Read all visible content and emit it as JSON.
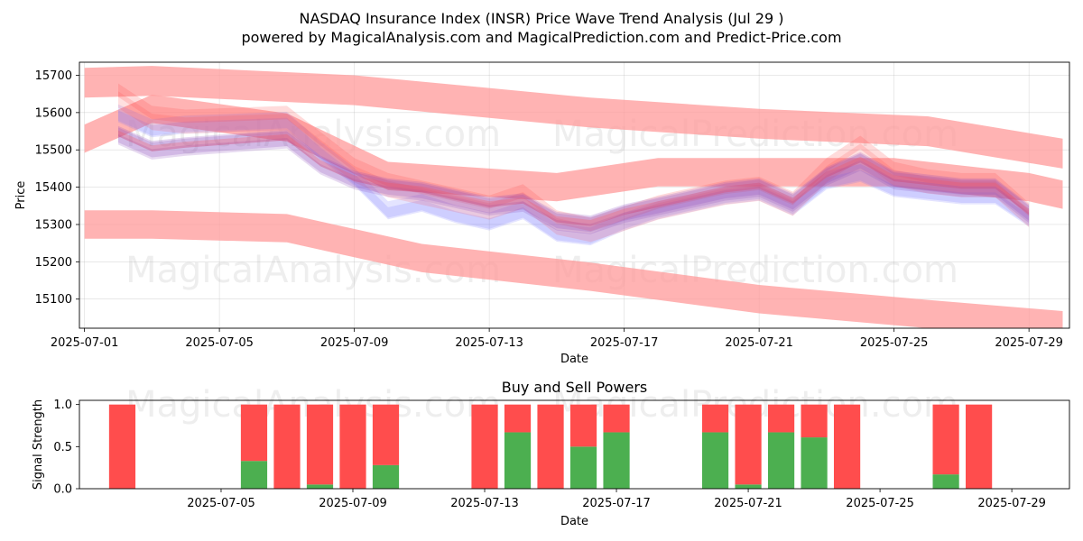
{
  "title": "NASDAQ Insurance Index (INSR) Price Wave Trend Analysis (Jul 29 )",
  "subtitle": "powered by MagicalAnalysis.com and MagicalPrediction.com and Predict-Price.com",
  "watermarks": [
    "MagicalAnalysis.com",
    "MagicalPrediction.com"
  ],
  "colors": {
    "red": "#ff4d4d",
    "green": "#4caf50",
    "blue": "#6b6bff",
    "band": "#ff9999",
    "purple": "#8844bb"
  },
  "chart_data": [
    {
      "type": "line",
      "title": "",
      "xlabel": "Date",
      "ylabel": "Price",
      "xlim": [
        -0.15,
        29.2
      ],
      "ylim": [
        15022,
        15735
      ],
      "x_tick_labels": [
        "2025-07-01",
        "2025-07-05",
        "2025-07-09",
        "2025-07-13",
        "2025-07-17",
        "2025-07-21",
        "2025-07-25",
        "2025-07-29"
      ],
      "x_tick_positions": [
        0,
        4,
        8,
        12,
        16,
        20,
        24,
        28
      ],
      "y_ticks": [
        15100,
        15200,
        15300,
        15400,
        15500,
        15600,
        15700
      ],
      "x": [
        1,
        2,
        3,
        6,
        7,
        8,
        9,
        10,
        11,
        12,
        13,
        14,
        15,
        16,
        17,
        18,
        19,
        20,
        21,
        22,
        23,
        24,
        25,
        26,
        27,
        28
      ],
      "series": [
        {
          "name": "wave-main",
          "values": [
            15540,
            15500,
            15510,
            15530,
            15460,
            15420,
            15400,
            15390,
            15370,
            15350,
            15360,
            15310,
            15300,
            15330,
            15350,
            15370,
            15390,
            15400,
            15360,
            15430,
            15470,
            15420,
            15410,
            15400,
            15400,
            15330
          ]
        },
        {
          "name": "wave-blue",
          "values": [
            15600,
            15560,
            15570,
            15580,
            15500,
            15430,
            15340,
            15360,
            15330,
            15310,
            15340,
            15280,
            15270,
            15310,
            15340,
            15360,
            15380,
            15390,
            15350,
            15420,
            15440,
            15400,
            15390,
            15380,
            15380,
            15320
          ]
        },
        {
          "name": "wave-upper",
          "values": [
            15660,
            15600,
            15590,
            15600,
            15530,
            15460,
            15420,
            15400,
            15380,
            15360,
            15390,
            15320,
            15300,
            15330,
            15360,
            15380,
            15400,
            15410,
            15370,
            15460,
            15520,
            15450,
            15430,
            15420,
            15420,
            15340
          ]
        }
      ],
      "bands": [
        {
          "name": "top-channel",
          "x": [
            0,
            2,
            8,
            15,
            20,
            25,
            29
          ],
          "center": [
            15680,
            15685,
            15660,
            15600,
            15570,
            15550,
            15490
          ]
        },
        {
          "name": "middle-channel",
          "x": [
            0,
            2,
            6,
            9,
            14,
            17,
            20,
            24,
            28,
            29
          ],
          "center": [
            15530,
            15610,
            15560,
            15430,
            15400,
            15440,
            15440,
            15440,
            15400,
            15380
          ]
        },
        {
          "name": "bottom-channel",
          "x": [
            0,
            2,
            6,
            10,
            15,
            20,
            25,
            29
          ],
          "center": [
            15300,
            15300,
            15290,
            15210,
            15160,
            15100,
            15060,
            15030
          ]
        }
      ]
    },
    {
      "type": "bar",
      "title": "Buy and Sell Powers",
      "xlabel": "Date",
      "ylabel": "Signal Strength",
      "ylim": [
        0,
        1.05
      ],
      "y_ticks": [
        "0.0",
        "0.5",
        "1.0"
      ],
      "x_tick_labels": [
        "2025-07-05",
        "2025-07-09",
        "2025-07-13",
        "2025-07-17",
        "2025-07-21",
        "2025-07-25",
        "2025-07-29"
      ],
      "x_tick_positions": [
        4,
        8,
        12,
        16,
        20,
        24,
        28
      ],
      "xlim": [
        -0.3,
        29.75
      ],
      "bars": [
        {
          "x": 1,
          "buy": 0.0
        },
        {
          "x": 5,
          "buy": 0.33
        },
        {
          "x": 6,
          "buy": 0.0
        },
        {
          "x": 7,
          "buy": 0.05
        },
        {
          "x": 8,
          "buy": 0.0
        },
        {
          "x": 9,
          "buy": 0.28
        },
        {
          "x": 12,
          "buy": 0.0
        },
        {
          "x": 13,
          "buy": 0.67
        },
        {
          "x": 14,
          "buy": 0.0
        },
        {
          "x": 15,
          "buy": 0.5
        },
        {
          "x": 16,
          "buy": 0.67
        },
        {
          "x": 19,
          "buy": 0.67
        },
        {
          "x": 20,
          "buy": 0.05
        },
        {
          "x": 21,
          "buy": 0.67
        },
        {
          "x": 22,
          "buy": 0.61
        },
        {
          "x": 23,
          "buy": 0.0
        },
        {
          "x": 26,
          "buy": 0.17
        },
        {
          "x": 27,
          "buy": 0.0
        }
      ]
    }
  ]
}
